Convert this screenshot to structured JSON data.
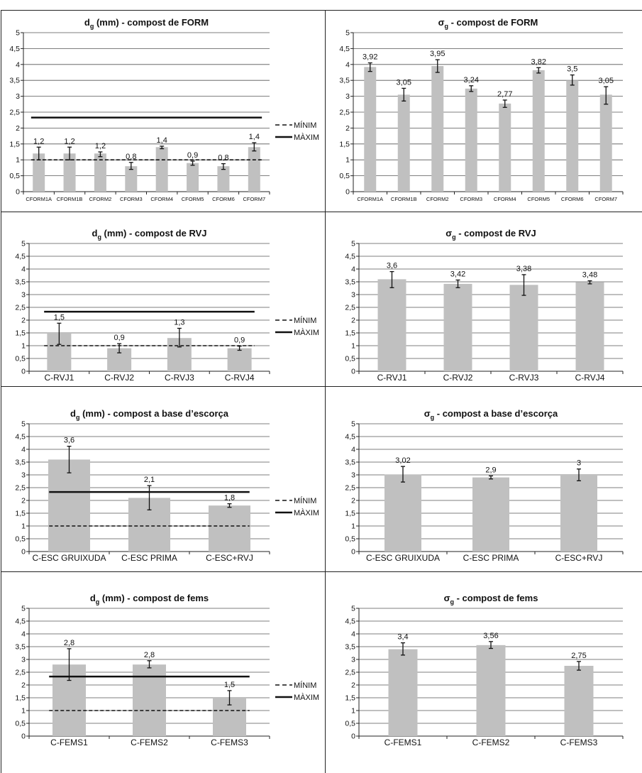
{
  "legend": {
    "min_label": "MÍNIM",
    "max_label": "MÀXIM"
  },
  "chart_data": [
    {
      "type": "bar",
      "title": "d",
      "title_sub": "g",
      "title_rest": " (mm) - compost de FORM",
      "categories": [
        "CFORM1A",
        "CFORM1B",
        "CFORM2",
        "CFORM3",
        "CFORM4",
        "CFORM5",
        "CFORM6",
        "CFORM7"
      ],
      "values": [
        1.2,
        1.2,
        1.2,
        0.8,
        1.4,
        0.9,
        0.8,
        1.4
      ],
      "value_labels": [
        "1,2",
        "1,2",
        "1,2",
        "0,8",
        "1,4",
        "0,9",
        "0,8",
        "1,4"
      ],
      "error_low": [
        1.0,
        1.0,
        1.1,
        0.7,
        1.35,
        0.83,
        0.7,
        1.28
      ],
      "error_high": [
        1.4,
        1.4,
        1.25,
        0.92,
        1.43,
        0.96,
        0.88,
        1.54
      ],
      "ylim": [
        0,
        5
      ],
      "yticks": [
        "0",
        "0,5",
        "1",
        "1,5",
        "2",
        "2,5",
        "3",
        "3,5",
        "4",
        "4,5",
        "5"
      ],
      "min_line": 1.0,
      "max_line": 2.33,
      "bar_color": "#c0c0c0",
      "grid": true,
      "legend": "right"
    },
    {
      "type": "bar",
      "title": "σ",
      "title_sub": "g",
      "title_rest": " - compost de FORM",
      "categories": [
        "CFORM1A",
        "CFORM1B",
        "CFORM2",
        "CFORM3",
        "CFORM4",
        "CFORM5",
        "CFORM6",
        "CFORM7"
      ],
      "values": [
        3.92,
        3.05,
        3.95,
        3.24,
        2.77,
        3.82,
        3.5,
        3.05
      ],
      "value_labels": [
        "3,92",
        "3,05",
        "3,95",
        "3,24",
        "2,77",
        "3,82",
        "3,5",
        "3,05"
      ],
      "error_low": [
        3.78,
        2.85,
        3.75,
        3.15,
        2.65,
        3.73,
        3.35,
        2.75
      ],
      "error_high": [
        4.05,
        3.25,
        4.15,
        3.33,
        2.88,
        3.9,
        3.67,
        3.3
      ],
      "ylim": [
        0,
        5
      ],
      "yticks": [
        "0",
        "0,5",
        "1",
        "1,5",
        "2",
        "2,5",
        "3",
        "3,5",
        "4",
        "4,5",
        "5"
      ],
      "bar_color": "#c0c0c0",
      "grid": true
    },
    {
      "type": "bar",
      "title": "d",
      "title_sub": "g",
      "title_rest": " (mm) - compost de RVJ",
      "categories": [
        "C-RVJ1",
        "C-RVJ2",
        "C-RVJ3",
        "C-RVJ4"
      ],
      "values": [
        1.5,
        0.9,
        1.3,
        0.9
      ],
      "value_labels": [
        "1,5",
        "0,9",
        "1,3",
        "0,9"
      ],
      "error_low": [
        1.05,
        0.72,
        0.95,
        0.82
      ],
      "error_high": [
        1.88,
        1.08,
        1.68,
        0.98
      ],
      "ylim": [
        0,
        5
      ],
      "yticks": [
        "0",
        "0,5",
        "1",
        "1,5",
        "2",
        "2,5",
        "3",
        "3,5",
        "4",
        "4,5",
        "5"
      ],
      "min_line": 1.0,
      "max_line": 2.33,
      "bar_color": "#c0c0c0",
      "grid": true,
      "legend": "right"
    },
    {
      "type": "bar",
      "title": "σ",
      "title_sub": "g",
      "title_rest": " - compost de RVJ",
      "categories": [
        "C-RVJ1",
        "C-RVJ2",
        "C-RVJ3",
        "C-RVJ4"
      ],
      "values": [
        3.6,
        3.42,
        3.38,
        3.48
      ],
      "value_labels": [
        "3,6",
        "3,42",
        "3,38",
        "3,48"
      ],
      "error_low": [
        3.27,
        3.27,
        2.97,
        3.42
      ],
      "error_high": [
        3.9,
        3.57,
        3.78,
        3.54
      ],
      "ylim": [
        0,
        5
      ],
      "yticks": [
        "0",
        "0,5",
        "1",
        "1,5",
        "2",
        "2,5",
        "3",
        "3,5",
        "4",
        "4,5",
        "5"
      ],
      "bar_color": "#c0c0c0",
      "grid": true
    },
    {
      "type": "bar",
      "title": "d",
      "title_sub": "g",
      "title_rest": " (mm) - compost a base d’escorça",
      "categories": [
        "C-ESC GRUIXUDA",
        "C-ESC PRIMA",
        "C-ESC+RVJ"
      ],
      "values": [
        3.6,
        2.1,
        1.8
      ],
      "value_labels": [
        "3,6",
        "2,1",
        "1,8"
      ],
      "error_low": [
        3.08,
        1.63,
        1.73
      ],
      "error_high": [
        4.12,
        2.58,
        1.87
      ],
      "ylim": [
        0,
        5
      ],
      "yticks": [
        "0",
        "0,5",
        "1",
        "1,5",
        "2",
        "2,5",
        "3",
        "3,5",
        "4",
        "4,5",
        "5"
      ],
      "min_line": 1.0,
      "max_line": 2.33,
      "bar_color": "#c0c0c0",
      "grid": true,
      "legend": "right"
    },
    {
      "type": "bar",
      "title": "σ",
      "title_sub": "g",
      "title_rest": " - compost a base d’escorça",
      "categories": [
        "C-ESC GRUIXUDA",
        "C-ESC PRIMA",
        "C-ESC+RVJ"
      ],
      "values": [
        3.02,
        2.9,
        3.0
      ],
      "value_labels": [
        "3,02",
        "2,9",
        "3"
      ],
      "error_low": [
        2.72,
        2.84,
        2.77
      ],
      "error_high": [
        3.33,
        2.96,
        3.23
      ],
      "ylim": [
        0,
        5
      ],
      "yticks": [
        "0",
        "0,5",
        "1",
        "1,5",
        "2",
        "2,5",
        "3",
        "3,5",
        "4",
        "4,5",
        "5"
      ],
      "bar_color": "#c0c0c0",
      "grid": true
    },
    {
      "type": "bar",
      "title": "d",
      "title_sub": "g",
      "title_rest": " (mm) - compost de fems",
      "categories": [
        "C-FEMS1",
        "C-FEMS2",
        "C-FEMS3"
      ],
      "values": [
        2.8,
        2.8,
        1.5
      ],
      "value_labels": [
        "2,8",
        "2,8",
        "1,5"
      ],
      "error_low": [
        2.18,
        2.67,
        1.22
      ],
      "error_high": [
        3.42,
        2.95,
        1.78
      ],
      "ylim": [
        0,
        5
      ],
      "yticks": [
        "0",
        "0,5",
        "1",
        "1,5",
        "2",
        "2,5",
        "3",
        "3,5",
        "4",
        "4,5",
        "5"
      ],
      "min_line": 1.0,
      "max_line": 2.33,
      "bar_color": "#c0c0c0",
      "grid": true,
      "legend": "right"
    },
    {
      "type": "bar",
      "title": "σ",
      "title_sub": "g",
      "title_rest": " - compost de fems",
      "categories": [
        "C-FEMS1",
        "C-FEMS2",
        "C-FEMS3"
      ],
      "values": [
        3.4,
        3.56,
        2.75
      ],
      "value_labels": [
        "3,4",
        "3,56",
        "2,75"
      ],
      "error_low": [
        3.17,
        3.43,
        2.58
      ],
      "error_high": [
        3.65,
        3.7,
        2.92
      ],
      "ylim": [
        0,
        5
      ],
      "yticks": [
        "0",
        "0,5",
        "1",
        "1,5",
        "2",
        "2,5",
        "3",
        "3,5",
        "4",
        "4,5",
        "5"
      ],
      "bar_color": "#c0c0c0",
      "grid": true
    }
  ]
}
